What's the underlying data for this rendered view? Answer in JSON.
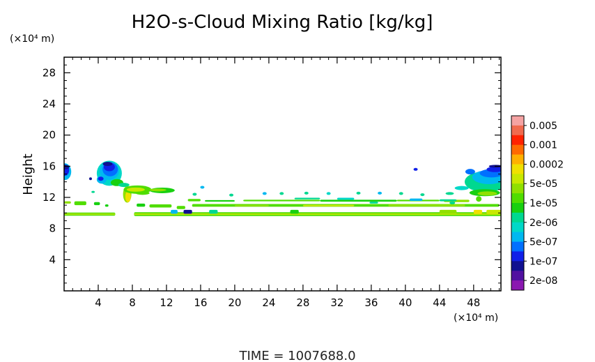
{
  "chart_data": {
    "type": "heatmap",
    "title": "H2O-s-Cloud Mixing Ratio [kg/kg]",
    "ylabel": "Height",
    "xlabel": "",
    "x_unit": "(×10⁴ m)",
    "y_unit": "(×10⁴ m)",
    "xlim": [
      0,
      51.2
    ],
    "ylim": [
      0,
      30
    ],
    "x_ticks": [
      4,
      8,
      12,
      16,
      20,
      24,
      28,
      32,
      36,
      40,
      44,
      48
    ],
    "y_ticks": [
      4,
      8,
      12,
      16,
      20,
      24,
      28
    ],
    "colorbar": {
      "labels": [
        "0.005",
        "0.001",
        "0.0002",
        "5e-05",
        "1e-05",
        "2e-06",
        "5e-07",
        "1e-07",
        "2e-08"
      ],
      "colors": [
        "#f5a3a3",
        "#f06a4e",
        "#ff2200",
        "#ff6a00",
        "#ffb000",
        "#f0e000",
        "#c8e800",
        "#90e000",
        "#50dd00",
        "#18d010",
        "#00d890",
        "#00d8c8",
        "#00b8f0",
        "#0070ff",
        "#1020e8",
        "#101090",
        "#5010a0",
        "#8a18b0"
      ]
    },
    "features": [
      {
        "name": "layer-9.8",
        "x": [
          0,
          51.2
        ],
        "y": [
          9.6,
          10.1
        ],
        "value": "1e-05"
      },
      {
        "name": "layer-11",
        "x": [
          0,
          51
        ],
        "y": [
          10.8,
          11.6
        ],
        "value": "1e-05"
      },
      {
        "name": "cloud-left-edge",
        "x": [
          0,
          0.8
        ],
        "y": [
          14.6,
          16.0
        ],
        "value": "1e-07"
      },
      {
        "name": "cloud-5",
        "x": [
          4.3,
          6.6
        ],
        "y": [
          13.6,
          16.4
        ],
        "value": "1e-07"
      },
      {
        "name": "cloud-right-edge",
        "x": [
          46.5,
          51.2
        ],
        "y": [
          12.0,
          16.0
        ],
        "value": "1e-07"
      },
      {
        "name": "plume-8-12",
        "x": [
          5,
          12
        ],
        "y": [
          11.5,
          13.6
        ],
        "value": "5e-05"
      }
    ]
  },
  "caption": {
    "time": "TIME  =  1007688.0"
  }
}
